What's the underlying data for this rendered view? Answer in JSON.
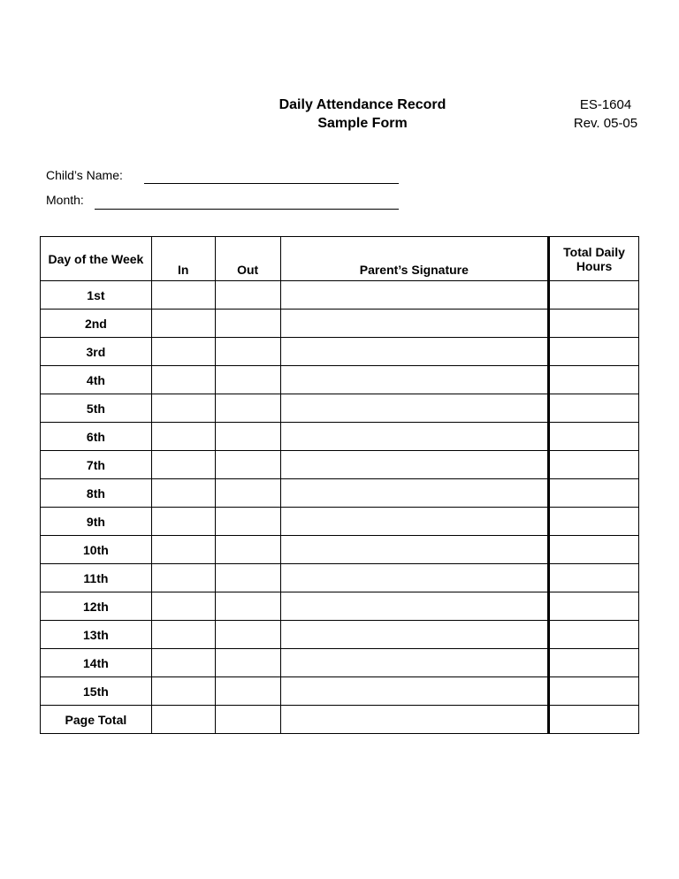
{
  "header": {
    "title": "Daily Attendance Record",
    "subtitle": "Sample Form",
    "form_code": "ES-1604",
    "revision": "Rev. 05-05"
  },
  "fields": {
    "child_name_label": "Child’s Name:",
    "month_label": "Month:"
  },
  "table": {
    "columns": [
      "Day of the Week",
      "In",
      "Out",
      "Parent’s Signature",
      "Total Daily Hours"
    ],
    "rows": [
      "1st",
      "2nd",
      "3rd",
      "4th",
      "5th",
      "6th",
      "7th",
      "8th",
      "9th",
      "10th",
      "11th",
      "12th",
      "13th",
      "14th",
      "15th",
      "Page Total"
    ]
  }
}
